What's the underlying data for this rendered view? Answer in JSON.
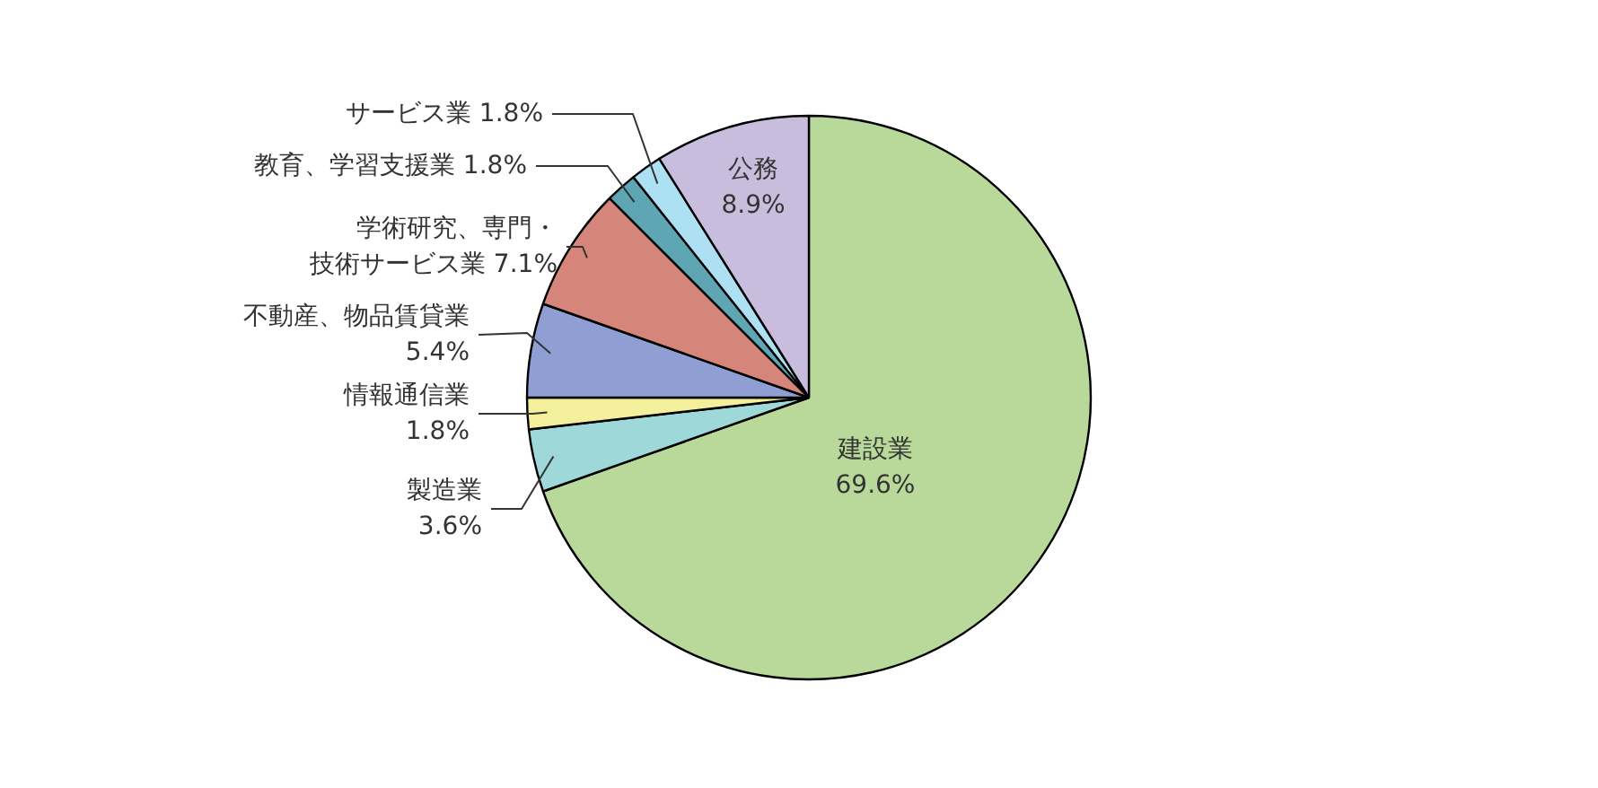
{
  "chart_data": {
    "type": "pie",
    "categories": [
      "建設業",
      "製造業",
      "情報通信業",
      "不動産、物品賃貸業",
      "学術研究、専門・技術サービス業",
      "教育、学習支援業",
      "サービス業",
      "公務"
    ],
    "values": [
      69.6,
      3.6,
      1.8,
      5.4,
      7.1,
      1.8,
      1.8,
      8.9
    ],
    "value_labels": [
      "69.6%",
      "3.6%",
      "1.8%",
      "5.4%",
      "7.1%",
      "1.8%",
      "1.8%",
      "8.9%"
    ],
    "colors": [
      "#b8d99a",
      "#9ed8d8",
      "#f4ef9c",
      "#8f9ed3",
      "#d6857a",
      "#5ea6b4",
      "#ace0f2",
      "#c8bddc"
    ]
  }
}
